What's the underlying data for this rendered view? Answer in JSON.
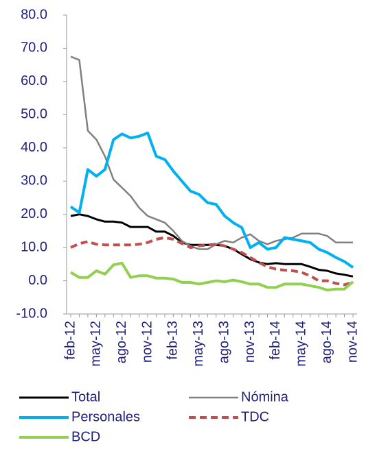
{
  "chart_data": {
    "type": "line",
    "categories": [
      "feb-12",
      null,
      null,
      "may-12",
      null,
      null,
      "ago-12",
      null,
      null,
      "nov-12",
      null,
      null,
      "feb-13",
      null,
      null,
      "may-13",
      null,
      null,
      "ago-13",
      null,
      null,
      "nov-13",
      null,
      null,
      "feb-14",
      null,
      null,
      "may-14",
      null,
      null,
      "ago-14",
      null,
      null,
      "nov-14"
    ],
    "series": [
      {
        "name": "Total",
        "color": "#000000",
        "values": [
          19.5,
          20,
          19.5,
          18.5,
          17.8,
          17.8,
          17.5,
          16.2,
          16.2,
          16.2,
          14.8,
          14.8,
          13.5,
          11.5,
          10.8,
          10.8,
          10.8,
          10.8,
          10.5,
          9.5,
          8,
          6.5,
          5.5,
          5,
          5.3,
          5,
          5,
          5,
          4.2,
          3.3,
          3,
          2.2,
          1.8,
          1.3
        ]
      },
      {
        "name": "Nómina",
        "color": "#808080",
        "values": [
          67.5,
          66.5,
          45.2,
          42.5,
          37.5,
          30.5,
          28,
          25.5,
          22,
          19.5,
          18.5,
          17.5,
          15,
          12,
          10.5,
          9.5,
          9.5,
          11,
          12,
          11.5,
          13,
          14,
          12,
          11,
          12,
          12.5,
          13,
          14.2,
          14.2,
          14.2,
          13.5,
          11.5,
          11.5,
          11.5
        ]
      },
      {
        "name": "Personales",
        "color": "#00b0f0",
        "values": [
          22.3,
          20.5,
          33.5,
          31.5,
          33.5,
          42.5,
          44.2,
          43,
          43.5,
          44.5,
          37.5,
          36.5,
          33,
          30,
          27,
          26,
          23.5,
          23,
          19.5,
          17.5,
          16,
          10,
          11.5,
          9.5,
          10,
          13,
          12.5,
          12,
          11.5,
          9.5,
          8.5,
          7,
          5.8,
          4
        ]
      },
      {
        "name": "TDC",
        "color": "#c0504d",
        "dashed": true,
        "values": [
          10,
          11.2,
          11.8,
          11,
          10.8,
          10.8,
          10.8,
          10.8,
          11,
          11.5,
          12.5,
          13,
          12.5,
          11.2,
          10,
          10.5,
          10.8,
          11,
          10.5,
          9.5,
          8.5,
          7,
          5.5,
          4.2,
          3.5,
          3.2,
          3,
          2.5,
          1.5,
          0,
          0,
          -0.8,
          -1.2,
          -0.5
        ]
      },
      {
        "name": "BCD",
        "color": "#92d050",
        "values": [
          2.5,
          1,
          1,
          3,
          2,
          4.8,
          5.3,
          1,
          1.5,
          1.5,
          0.8,
          0.8,
          0.5,
          -0.5,
          -0.5,
          -1,
          -0.5,
          0,
          -0.3,
          0.2,
          -0.3,
          -1,
          -1,
          -2,
          -2,
          -1,
          -1,
          -1,
          -1.5,
          -2,
          -2.8,
          -2.5,
          -2.5,
          -0.3
        ]
      }
    ],
    "ylim": [
      -10,
      80
    ],
    "yticks": [
      {
        "value": -10,
        "label": "-10.0"
      },
      {
        "value": 0,
        "label": "0.0"
      },
      {
        "value": 10,
        "label": "10.0"
      },
      {
        "value": 20,
        "label": "20.0"
      },
      {
        "value": 30,
        "label": "30.0"
      },
      {
        "value": 40,
        "label": "40.0"
      },
      {
        "value": 50,
        "label": "50.0"
      },
      {
        "value": 60,
        "label": "60.0"
      },
      {
        "value": 70,
        "label": "70.0"
      },
      {
        "value": 80,
        "label": "80.0"
      }
    ],
    "grid": false,
    "legend": "bottom"
  }
}
